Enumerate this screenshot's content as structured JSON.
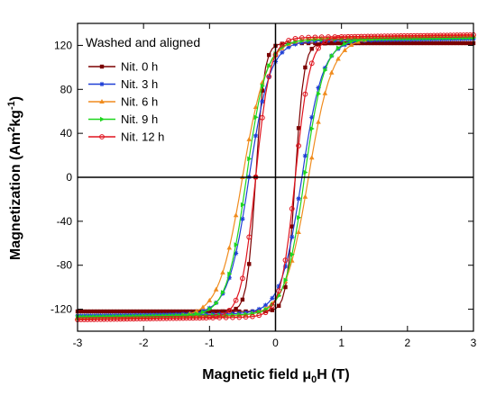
{
  "chart_data": {
    "type": "line",
    "title": "",
    "annotation": "Washed and aligned",
    "xlabel_main": "Magnetic field μ",
    "xlabel_sub": "0",
    "xlabel_tail": "H (T)",
    "ylabel_main": "Magnetization (Am",
    "ylabel_sup1": "2",
    "ylabel_mid": "kg",
    "ylabel_sup2": "-1",
    "ylabel_tail": ")",
    "xlim": [
      -3,
      3
    ],
    "ylim": [
      -140,
      140
    ],
    "xticks": [
      -3,
      -2,
      -1,
      0,
      1,
      2,
      3
    ],
    "yticks": [
      -120,
      -80,
      -40,
      0,
      40,
      80,
      120
    ],
    "xtick_labels": [
      "-3",
      "-2",
      "-1",
      "0",
      "1",
      "2",
      "3"
    ],
    "ytick_labels": [
      "-120",
      "-80",
      "-40",
      "0",
      "40",
      "80",
      "120"
    ],
    "grid": false,
    "legend_position": "top-left",
    "series": [
      {
        "name": "Nit. 0 h",
        "color": "#7b0000",
        "marker": "square",
        "Ms": 122,
        "Hc": 0.3,
        "w": 0.13,
        "tail": 0.0
      },
      {
        "name": "Nit. 3 h",
        "color": "#1f3fd6",
        "marker": "star",
        "Ms": 124,
        "Hc": 0.4,
        "w": 0.32,
        "tail": 2.0
      },
      {
        "name": "Nit. 6 h",
        "color": "#f08c1e",
        "marker": "triangle",
        "Ms": 126,
        "Hc": 0.5,
        "w": 0.36,
        "tail": 2.5
      },
      {
        "name": "Nit. 9 h",
        "color": "#1ed61e",
        "marker": "triangle-right",
        "Ms": 125,
        "Hc": 0.44,
        "w": 0.3,
        "tail": 2.0
      },
      {
        "name": "Nit. 12 h",
        "color": "#e0141e",
        "marker": "circle",
        "Ms": 127,
        "Hc": 0.3,
        "w": 0.22,
        "tail": 2.5
      }
    ]
  }
}
